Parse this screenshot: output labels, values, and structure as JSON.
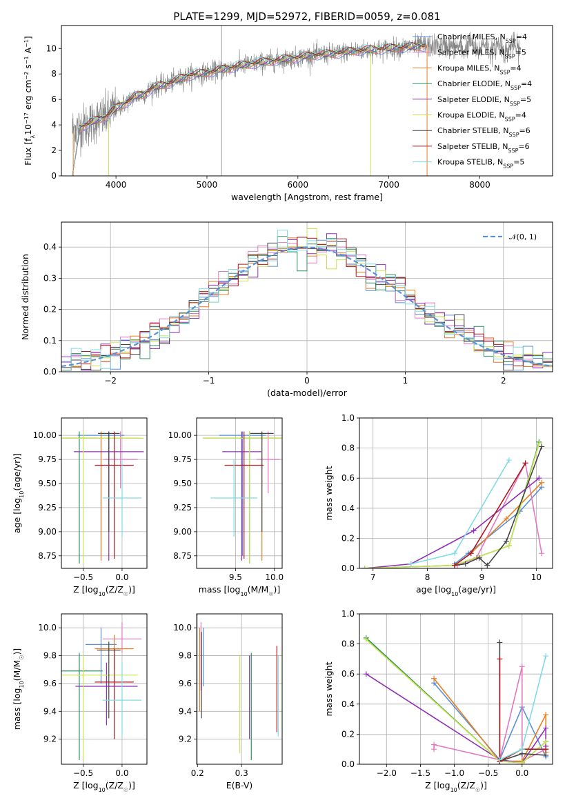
{
  "figure_title": "PLATE=1299, MJD=52972, FIBERID=0059, z=0.081",
  "colors": {
    "chabrier_miles": "#5b8fd6",
    "salpeter_miles": "#e377c2",
    "kroupa_miles": "#e67e22",
    "chabrier_elodie": "#2f8f5f",
    "salpeter_elodie": "#8e2fb5",
    "kroupa_elodie": "#c8e64b",
    "chabrier_stelib": "#444444",
    "salpeter_stelib": "#b0181e",
    "kroupa_stelib": "#7fdbe4",
    "data": "#808080",
    "normal": "#5b8fd6"
  },
  "legend_spectrum": [
    {
      "key": "chabrier_miles",
      "label": "Chabrier MILES, N",
      "sub": "SSP",
      "tail": "=4"
    },
    {
      "key": "salpeter_miles",
      "label": "Salpeter MILES, N",
      "sub": "SSP",
      "tail": "=5"
    },
    {
      "key": "kroupa_miles",
      "label": "Kroupa MILES, N",
      "sub": "SSP",
      "tail": "=4"
    },
    {
      "key": "chabrier_elodie",
      "label": "Chabrier ELODIE, N",
      "sub": "SSP",
      "tail": "=4"
    },
    {
      "key": "salpeter_elodie",
      "label": "Salpeter ELODIE, N",
      "sub": "SSP",
      "tail": "=5"
    },
    {
      "key": "kroupa_elodie",
      "label": "Kroupa ELODIE, N",
      "sub": "SSP",
      "tail": "=4"
    },
    {
      "key": "chabrier_stelib",
      "label": "Chabrier STELIB, N",
      "sub": "SSP",
      "tail": "=6"
    },
    {
      "key": "salpeter_stelib",
      "label": "Salpeter STELIB, N",
      "sub": "SSP",
      "tail": "=6"
    },
    {
      "key": "kroupa_stelib",
      "label": "Kroupa STELIB, N",
      "sub": "SSP",
      "tail": "=5"
    }
  ],
  "chart_data": [
    {
      "id": "spectrum",
      "type": "line",
      "xlabel": "wavelength [Angstrom, rest frame]",
      "ylabel": "Flux [f_λ 10^-17 erg cm^-2 s^-1 A^-1]",
      "xlim": [
        3400,
        8800
      ],
      "ylim": [
        0,
        11.8
      ],
      "xticks": [
        4000,
        5000,
        6000,
        7000,
        8000
      ],
      "yticks": [
        0,
        2,
        4,
        6,
        8,
        10
      ],
      "grid": false,
      "continuum_x": [
        3500,
        3600,
        3700,
        3800,
        3900,
        4000,
        4100,
        4200,
        4300,
        4400,
        4500,
        4600,
        4700,
        4800,
        4900,
        5000,
        5200,
        5400,
        5600,
        5800,
        6000,
        6200,
        6400,
        6600,
        6800,
        7000,
        7200,
        7400
      ],
      "continuum_y": [
        3.6,
        3.8,
        4.1,
        4.4,
        4.7,
        5.3,
        5.7,
        6.2,
        6.4,
        6.9,
        7.1,
        7.3,
        7.6,
        7.9,
        8.0,
        8.1,
        8.4,
        8.7,
        8.9,
        9.1,
        9.3,
        9.5,
        9.6,
        9.8,
        9.9,
        10.0,
        10.1,
        10.2
      ],
      "data_end_x": 8450,
      "legend_position": "upper-right"
    },
    {
      "id": "residuals",
      "type": "step-histogram",
      "xlabel": "(data-model)/error",
      "ylabel": "Normed distribution",
      "xlim": [
        -2.5,
        2.5
      ],
      "ylim": [
        0,
        0.48
      ],
      "xticks": [
        -2,
        -1,
        0,
        1,
        2
      ],
      "yticks": [
        0.0,
        0.1,
        0.2,
        0.3,
        0.4
      ],
      "grid": true,
      "bin_width": 0.1,
      "reference_curve": {
        "label": "𝒩(0, 1)",
        "mean": 0,
        "sigma": 1
      },
      "legend_position": "upper-right"
    },
    {
      "id": "age_vs_Z",
      "type": "errorbar",
      "xlabel": "Z [log₁₀(Z/Z☉)]",
      "ylabel": "age  [log₁₀(age/yr)]",
      "xlim": [
        -0.78,
        0.32
      ],
      "ylim": [
        8.62,
        10.18
      ],
      "xticks": [
        -0.5,
        0.0
      ],
      "yticks": [
        8.75,
        9.0,
        9.25,
        9.5,
        9.75,
        10.0
      ],
      "grid": true,
      "points": [
        {
          "key": "chabrier_miles",
          "x": -0.27,
          "y": 10.0,
          "xerr": 0.3,
          "ylo": 8.75,
          "yhi": 10.04
        },
        {
          "key": "salpeter_miles",
          "x": -0.02,
          "y": 9.75,
          "xerr": 0.22,
          "ylo": 9.45,
          "yhi": 10.04
        },
        {
          "key": "kroupa_miles",
          "x": -0.27,
          "y": 9.97,
          "xerr": 0.5,
          "ylo": 8.7,
          "yhi": 10.04
        },
        {
          "key": "chabrier_elodie",
          "x": -0.55,
          "y": 9.97,
          "xerr": 0.22,
          "ylo": 8.67,
          "yhi": 10.04
        },
        {
          "key": "salpeter_elodie",
          "x": -0.17,
          "y": 9.83,
          "xerr": 0.45,
          "ylo": 8.7,
          "yhi": 10.04
        },
        {
          "key": "kroupa_elodie",
          "x": -0.5,
          "y": 9.97,
          "xerr": 0.78,
          "ylo": 8.67,
          "yhi": 10.04
        },
        {
          "key": "chabrier_stelib",
          "x": -0.17,
          "y": 10.02,
          "xerr": 0.14,
          "ylo": 9.0,
          "yhi": 10.04
        },
        {
          "key": "salpeter_stelib",
          "x": -0.1,
          "y": 9.69,
          "xerr": 0.25,
          "ylo": 8.72,
          "yhi": 10.04
        },
        {
          "key": "kroupa_stelib",
          "x": 0.0,
          "y": 9.35,
          "xerr": 0.25,
          "ylo": 8.95,
          "yhi": 9.75
        }
      ]
    },
    {
      "id": "age_vs_mass",
      "type": "errorbar",
      "xlabel": "mass [log₁₀(M/M☉)]",
      "ylabel": "",
      "xlim": [
        9.0,
        10.1
      ],
      "ylim": [
        8.62,
        10.18
      ],
      "xticks": [
        9.5,
        10.0
      ],
      "yticks": [
        8.75,
        9.0,
        9.25,
        9.5,
        9.75,
        10.0
      ],
      "grid": true,
      "points": [
        {
          "key": "chabrier_miles",
          "x": 9.59,
          "y": 10.0,
          "xerr": 0.3,
          "ylo": 8.75,
          "yhi": 10.04
        },
        {
          "key": "salpeter_miles",
          "x": 9.92,
          "y": 9.75,
          "xerr": 0.15,
          "ylo": 9.4,
          "yhi": 10.04
        },
        {
          "key": "kroupa_miles",
          "x": 9.84,
          "y": 9.97,
          "xerr": 0.2,
          "ylo": 8.7,
          "yhi": 10.04
        },
        {
          "key": "chabrier_elodie",
          "x": 9.68,
          "y": 9.97,
          "xerr": 0.6,
          "ylo": 8.67,
          "yhi": 10.04
        },
        {
          "key": "salpeter_elodie",
          "x": 9.58,
          "y": 9.83,
          "xerr": 0.25,
          "ylo": 8.7,
          "yhi": 10.04
        },
        {
          "key": "kroupa_elodie",
          "x": 9.68,
          "y": 9.97,
          "xerr": 0.6,
          "ylo": 8.67,
          "yhi": 10.04
        },
        {
          "key": "chabrier_stelib",
          "x": 9.84,
          "y": 10.02,
          "xerr": 0.15,
          "ylo": 9.0,
          "yhi": 10.04
        },
        {
          "key": "salpeter_stelib",
          "x": 9.61,
          "y": 9.69,
          "xerr": 0.25,
          "ylo": 8.72,
          "yhi": 10.04
        },
        {
          "key": "kroupa_stelib",
          "x": 9.48,
          "y": 9.35,
          "xerr": 0.3,
          "ylo": 8.95,
          "yhi": 9.75
        }
      ]
    },
    {
      "id": "weight_vs_age",
      "type": "line",
      "xlabel": "age  [log₁₀(age/yr)]",
      "ylabel": "mass weight",
      "xlim": [
        6.75,
        10.3
      ],
      "ylim": [
        0,
        1.0
      ],
      "xticks": [
        7,
        8,
        9,
        10
      ],
      "yticks": [
        0.0,
        0.2,
        0.4,
        0.6,
        0.8,
        1.0
      ],
      "grid": true,
      "series": [
        {
          "key": "chabrier_miles",
          "x": [
            8.5,
            8.75,
            9.7,
            10.1
          ],
          "y": [
            0.03,
            0.1,
            0.38,
            0.54
          ]
        },
        {
          "key": "salpeter_miles",
          "x": [
            8.55,
            8.9,
            9.8,
            10.1
          ],
          "y": [
            0.02,
            0.07,
            0.7,
            0.1
          ]
        },
        {
          "key": "kroupa_miles",
          "x": [
            8.5,
            8.8,
            9.45,
            10.1
          ],
          "y": [
            0.02,
            0.1,
            0.33,
            0.57
          ]
        },
        {
          "key": "chabrier_elodie",
          "x": [
            6.85,
            8.5,
            9.5,
            10.05
          ],
          "y": [
            0.0,
            0.02,
            0.15,
            0.84
          ]
        },
        {
          "key": "salpeter_elodie",
          "x": [
            6.85,
            7.7,
            8.85,
            10.05
          ],
          "y": [
            0.0,
            0.03,
            0.25,
            0.6
          ]
        },
        {
          "key": "kroupa_elodie",
          "x": [
            6.85,
            8.5,
            9.5,
            10.05
          ],
          "y": [
            0.0,
            0.02,
            0.15,
            0.83
          ]
        },
        {
          "key": "chabrier_stelib",
          "x": [
            8.5,
            8.7,
            8.95,
            9.1,
            9.45,
            10.1
          ],
          "y": [
            0.02,
            0.03,
            0.07,
            0.02,
            0.18,
            0.81
          ]
        },
        {
          "key": "salpeter_stelib",
          "x": [
            8.5,
            8.8,
            9.8
          ],
          "y": [
            0.02,
            0.1,
            0.7
          ]
        },
        {
          "key": "kroupa_stelib",
          "x": [
            7.7,
            8.5,
            9.5
          ],
          "y": [
            0.03,
            0.1,
            0.72
          ]
        }
      ]
    },
    {
      "id": "mass_vs_Z",
      "type": "errorbar",
      "xlabel": "Z [log₁₀(Z/Z☉)]",
      "ylabel": "mass [log₁₀(M/M☉)]",
      "xlim": [
        -0.78,
        0.32
      ],
      "ylim": [
        9.02,
        10.1
      ],
      "xticks": [
        -0.5,
        0.0
      ],
      "yticks": [
        9.2,
        9.4,
        9.6,
        9.8,
        10.0
      ],
      "grid": true,
      "points": [
        {
          "key": "chabrier_miles",
          "x": -0.27,
          "y": 9.88,
          "xerr": 0.2,
          "ylo": 9.6,
          "yhi": 10.0
        },
        {
          "key": "salpeter_miles",
          "x": 0.0,
          "y": 9.92,
          "xerr": 0.25,
          "ylo": 9.82,
          "yhi": 10.04
        },
        {
          "key": "kroupa_miles",
          "x": -0.1,
          "y": 9.85,
          "xerr": 0.25,
          "ylo": 9.7,
          "yhi": 9.95
        },
        {
          "key": "chabrier_elodie",
          "x": -0.55,
          "y": 9.69,
          "xerr": 0.3,
          "ylo": 9.05,
          "yhi": 9.82
        },
        {
          "key": "salpeter_elodie",
          "x": -0.2,
          "y": 9.58,
          "xerr": 0.4,
          "ylo": 9.3,
          "yhi": 9.75
        },
        {
          "key": "kroupa_elodie",
          "x": -0.5,
          "y": 9.66,
          "xerr": 0.7,
          "ylo": 9.05,
          "yhi": 9.8
        },
        {
          "key": "chabrier_stelib",
          "x": -0.17,
          "y": 9.84,
          "xerr": 0.15,
          "ylo": 9.35,
          "yhi": 9.9
        },
        {
          "key": "salpeter_stelib",
          "x": -0.1,
          "y": 9.61,
          "xerr": 0.25,
          "ylo": 9.2,
          "yhi": 9.85
        },
        {
          "key": "kroupa_stelib",
          "x": 0.0,
          "y": 9.48,
          "xerr": 0.25,
          "ylo": 9.22,
          "yhi": 9.75
        }
      ]
    },
    {
      "id": "mass_vs_ebv",
      "type": "errorbar",
      "xlabel": "E(B-V)",
      "ylabel": "",
      "xlim": [
        0.198,
        0.392
      ],
      "ylim": [
        9.02,
        10.1
      ],
      "xticks": [
        0.2,
        0.3
      ],
      "yticks": [
        9.2,
        9.4,
        9.6,
        9.8,
        10.0
      ],
      "grid": true,
      "points": [
        {
          "key": "chabrier_miles",
          "x": 0.213,
          "y": 9.8,
          "xerr": 0.0,
          "ylo": 9.58,
          "yhi": 10.0
        },
        {
          "key": "salpeter_miles",
          "x": 0.208,
          "y": 9.8,
          "xerr": 0.0,
          "ylo": 9.55,
          "yhi": 10.04
        },
        {
          "key": "kroupa_miles",
          "x": 0.205,
          "y": 9.75,
          "xerr": 0.0,
          "ylo": 9.4,
          "yhi": 10.0
        },
        {
          "key": "chabrier_elodie",
          "x": 0.322,
          "y": 9.5,
          "xerr": 0.0,
          "ylo": 9.05,
          "yhi": 9.82
        },
        {
          "key": "salpeter_elodie",
          "x": 0.318,
          "y": 9.5,
          "xerr": 0.0,
          "ylo": 9.2,
          "yhi": 9.8
        },
        {
          "key": "kroupa_elodie",
          "x": 0.296,
          "y": 9.45,
          "xerr": 0.0,
          "ylo": 9.1,
          "yhi": 9.8
        },
        {
          "key": "chabrier_stelib",
          "x": 0.209,
          "y": 9.7,
          "xerr": 0.0,
          "ylo": 9.35,
          "yhi": 9.97
        },
        {
          "key": "salpeter_stelib",
          "x": 0.38,
          "y": 9.55,
          "xerr": 0.0,
          "ylo": 9.25,
          "yhi": 9.87
        },
        {
          "key": "kroupa_stelib",
          "x": 0.383,
          "y": 9.5,
          "xerr": 0.0,
          "ylo": 9.22,
          "yhi": 9.8
        }
      ]
    },
    {
      "id": "weight_vs_Z",
      "type": "line",
      "xlabel": "Z [log₁₀(Z/Z☉)]",
      "ylabel": "mass weight",
      "xlim": [
        -2.4,
        0.45
      ],
      "ylim": [
        0,
        1.0
      ],
      "xticks": [
        -2.0,
        -1.5,
        -1.0,
        -0.5,
        0.0
      ],
      "yticks": [
        0.0,
        0.2,
        0.4,
        0.6,
        0.8,
        1.0
      ],
      "grid": true,
      "series": [
        {
          "key": "chabrier_miles",
          "x": [
            -1.3,
            -0.33,
            0.0,
            0.35
          ],
          "y": [
            0.54,
            0.03,
            0.38,
            0.05
          ]
        },
        {
          "key": "salpeter_miles",
          "x": [
            -1.3,
            -1.3,
            -0.33,
            0.0,
            0.0,
            0.35
          ],
          "y": [
            0.1,
            0.13,
            0.03,
            0.65,
            0.02,
            0.1
          ]
        },
        {
          "key": "kroupa_miles",
          "x": [
            -1.3,
            -0.33,
            0.0,
            0.35,
            0.35
          ],
          "y": [
            0.57,
            0.02,
            0.02,
            0.33,
            0.08
          ]
        },
        {
          "key": "chabrier_elodie",
          "x": [
            -2.3,
            -0.33,
            0.0,
            0.35
          ],
          "y": [
            0.84,
            0.02,
            0.01,
            0.15
          ]
        },
        {
          "key": "salpeter_elodie",
          "x": [
            -2.3,
            -0.33,
            0.0,
            0.35,
            0.35
          ],
          "y": [
            0.6,
            0.03,
            0.01,
            0.24,
            0.12
          ]
        },
        {
          "key": "kroupa_elodie",
          "x": [
            -2.3,
            -0.33,
            0.0,
            0.35
          ],
          "y": [
            0.83,
            0.02,
            0.01,
            0.15
          ]
        },
        {
          "key": "chabrier_stelib",
          "x": [
            -0.33,
            -0.33,
            0.0,
            0.35
          ],
          "y": [
            0.81,
            0.02,
            0.07,
            0.06
          ]
        },
        {
          "key": "salpeter_stelib",
          "x": [
            -0.33,
            -0.33,
            0.0,
            0.35,
            0.35
          ],
          "y": [
            0.7,
            0.02,
            0.1,
            0.1,
            0.1
          ]
        },
        {
          "key": "kroupa_stelib",
          "x": [
            -0.33,
            0.0,
            0.35
          ],
          "y": [
            0.03,
            0.1,
            0.72
          ]
        }
      ]
    }
  ]
}
